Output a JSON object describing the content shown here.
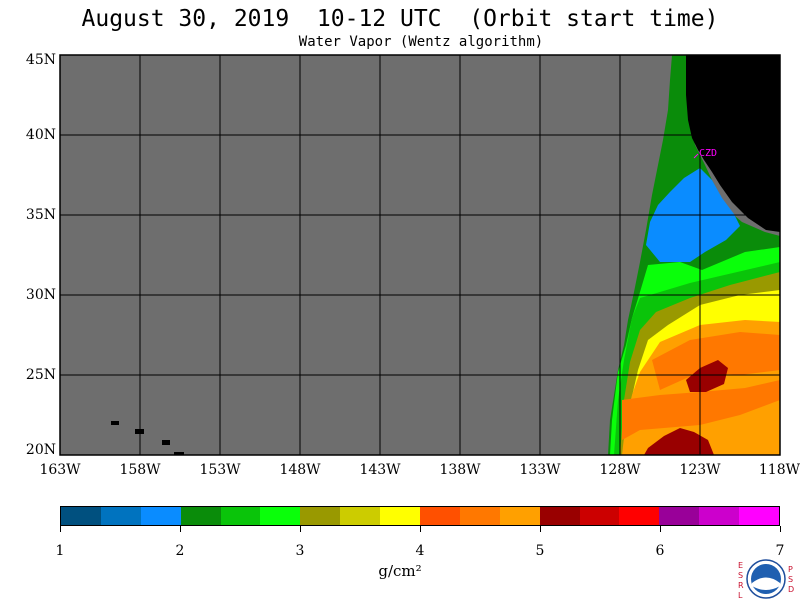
{
  "title": "August 30, 2019  10-12 UTC  (Orbit start time)",
  "subtitle": "Water Vapor (Wentz algorithm)",
  "station_label": "CZD",
  "map": {
    "lon_range": [
      -163,
      -118
    ],
    "lat_range": [
      20,
      45
    ],
    "ocean_no_data_color": "#6e6e6e",
    "land_color": "#000000",
    "grid": true,
    "lat_labels": [
      "45N",
      "40N",
      "35N",
      "30N",
      "25N",
      "20N"
    ],
    "lon_labels": [
      "163W",
      "158W",
      "153W",
      "148W",
      "143W",
      "138W",
      "133W",
      "128W",
      "123W",
      "118W"
    ]
  },
  "colorbar": {
    "units": "g/cm²",
    "range": [
      1,
      7
    ],
    "tick_labels": [
      "1",
      "2",
      "3",
      "4",
      "5",
      "6",
      "7"
    ],
    "colors": [
      "#00507f",
      "#0073bf",
      "#0a8cff",
      "#0a8c0a",
      "#0ac40a",
      "#0aff0a",
      "#999900",
      "#cccc00",
      "#ffff00",
      "#ff5000",
      "#ff7800",
      "#ffa000",
      "#990000",
      "#cc0000",
      "#ff0000",
      "#990099",
      "#cc00cc",
      "#ff00ff"
    ]
  },
  "logo": {
    "left_letters": "ESRL",
    "right_letters": "PSD",
    "name": "noaa-logo"
  }
}
